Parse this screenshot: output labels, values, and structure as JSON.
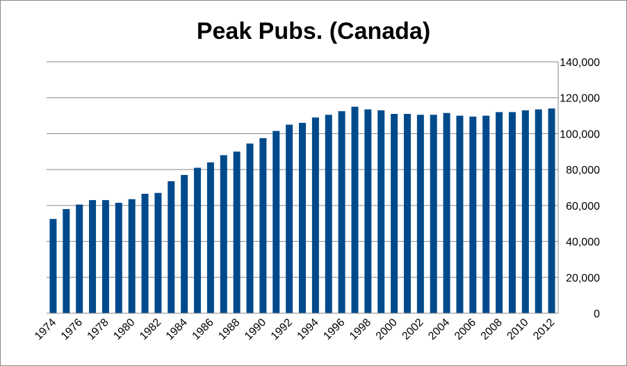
{
  "chart_data": {
    "type": "bar",
    "title": "Peak Pubs. (Canada)",
    "xlabel": "",
    "ylabel": "",
    "ylim": [
      0,
      140000
    ],
    "y_ticks": [
      "0",
      "20,000",
      "40,000",
      "60,000",
      "80,000",
      "100,000",
      "120,000",
      "140,000"
    ],
    "y_axis_side": "right",
    "grid": true,
    "legend": "none",
    "bar_color": "#004A8C",
    "categories": [
      "1974",
      "1975",
      "1976",
      "1977",
      "1978",
      "1979",
      "1980",
      "1981",
      "1982",
      "1983",
      "1984",
      "1985",
      "1986",
      "1987",
      "1988",
      "1989",
      "1990",
      "1991",
      "1992",
      "1993",
      "1994",
      "1995",
      "1996",
      "1997",
      "1998",
      "1999",
      "2000",
      "2001",
      "2002",
      "2003",
      "2004",
      "2005",
      "2006",
      "2007",
      "2008",
      "2009",
      "2010",
      "2011",
      "2012"
    ],
    "x_tick_labels": [
      "1974",
      "1976",
      "1978",
      "1980",
      "1982",
      "1984",
      "1986",
      "1988",
      "1990",
      "1992",
      "1994",
      "1996",
      "1998",
      "2000",
      "2002",
      "2004",
      "2006",
      "2008",
      "2010",
      "2012"
    ],
    "values": [
      52500,
      58000,
      60500,
      63000,
      63000,
      61500,
      63500,
      66500,
      67000,
      73500,
      77000,
      81000,
      84000,
      88000,
      90000,
      94500,
      97500,
      101500,
      105000,
      106000,
      109000,
      110500,
      112500,
      115000,
      113500,
      113000,
      111000,
      111000,
      110500,
      110500,
      111500,
      110000,
      109500,
      110000,
      112000,
      112000,
      113000,
      113500,
      114000
    ]
  }
}
